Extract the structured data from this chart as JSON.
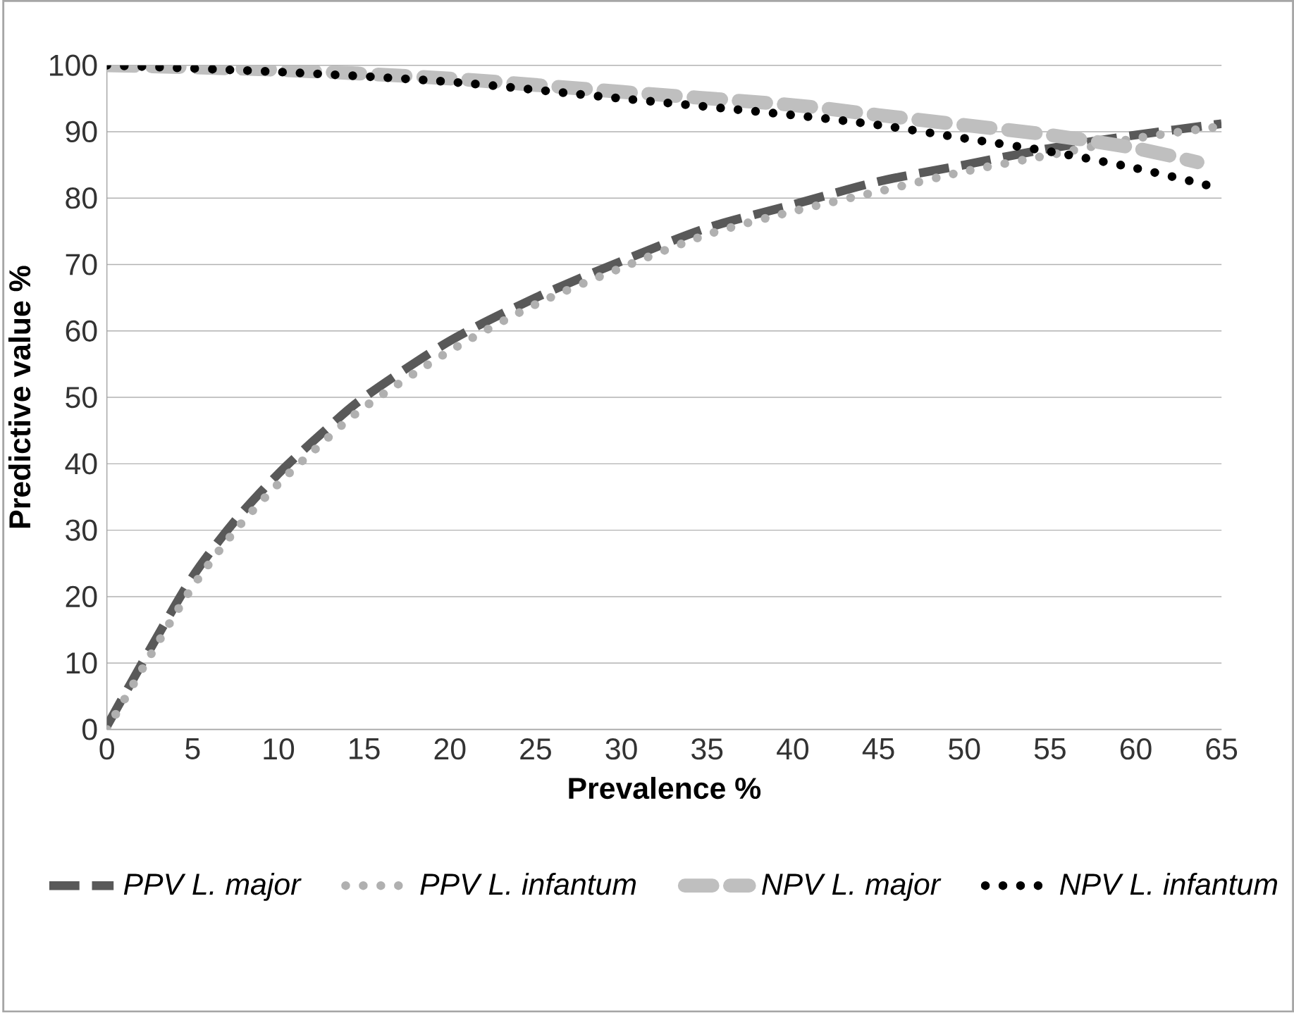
{
  "chart_data": {
    "type": "line",
    "xlabel": "Prevalence %",
    "ylabel": "Predictive value %",
    "xlim": [
      0,
      65
    ],
    "ylim": [
      0,
      100
    ],
    "xticks": [
      0,
      5,
      10,
      15,
      20,
      25,
      30,
      35,
      40,
      45,
      50,
      55,
      60,
      65
    ],
    "yticks": [
      0,
      10,
      20,
      30,
      40,
      50,
      60,
      70,
      80,
      90,
      100
    ],
    "grid": "y",
    "legend": "bottom",
    "series": [
      {
        "name": "PPV L. major",
        "color": "#595959",
        "line_style": "dashed",
        "x": [
          0,
          2.5,
          5,
          7.5,
          10,
          12.5,
          15,
          20,
          25,
          30,
          35,
          40,
          45,
          50,
          55,
          60,
          65
        ],
        "values": [
          0.5,
          12,
          23,
          31.5,
          38.5,
          44.5,
          50,
          58.5,
          65,
          70.5,
          75.5,
          79,
          82.5,
          85,
          87.5,
          89.5,
          91.2
        ]
      },
      {
        "name": "PPV L. infantum",
        "color": "#b0b0b0",
        "line_style": "dotted",
        "x": [
          0,
          2.5,
          5,
          7.5,
          10,
          12.5,
          15,
          20,
          25,
          30,
          35,
          40,
          45,
          50,
          55,
          60,
          65
        ],
        "values": [
          0,
          11,
          21.5,
          30,
          37,
          43,
          48.5,
          57,
          64,
          69.5,
          74.5,
          78,
          81,
          84,
          86.5,
          89,
          90.8
        ]
      },
      {
        "name": "NPV L. major",
        "color": "#bfbfbf",
        "line_style": "dashed",
        "x": [
          0,
          10,
          20,
          30,
          40,
          45,
          50,
          55,
          60,
          63.6
        ],
        "values": [
          100,
          99.3,
          98,
          96,
          94,
          92.5,
          91,
          89.5,
          87.5,
          85.4
        ]
      },
      {
        "name": "NPV L. infantum",
        "color": "#000000",
        "line_style": "dotted",
        "x": [
          0,
          10,
          20,
          30,
          40,
          45,
          50,
          55,
          60,
          64.4
        ],
        "values": [
          100,
          99,
          97.5,
          95,
          92.5,
          91,
          89,
          87,
          84.5,
          81.8
        ]
      }
    ]
  }
}
